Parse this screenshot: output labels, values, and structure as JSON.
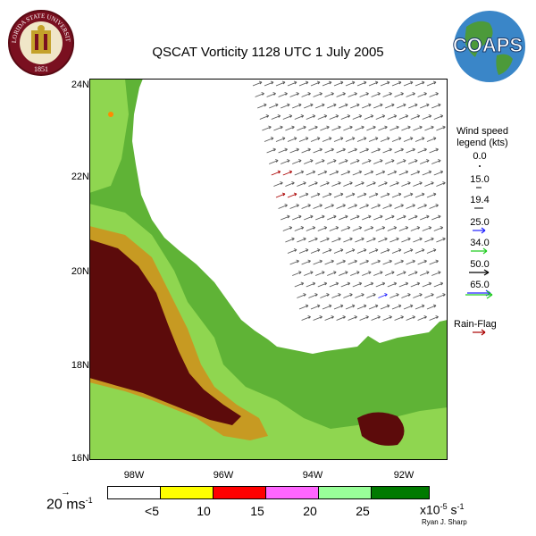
{
  "header": {
    "title": "QSCAT Vorticity 1128 UTC 1 July 2005",
    "left_logo": {
      "icon": "fsu-seal-icon",
      "text_top": "FLORIDA STATE UNIVERSITY",
      "text_year": "1851"
    },
    "right_logo": {
      "icon": "coaps-globe-icon",
      "text": "COAPS"
    }
  },
  "map": {
    "lat_labels": [
      "24N",
      "22N",
      "20N",
      "18N",
      "16N"
    ],
    "lon_labels": [
      "98W",
      "96W",
      "94W",
      "92W"
    ],
    "colors": {
      "ocean": "#ffffff",
      "lowland": "#5fb336",
      "mid": "#8fd650",
      "high": "#c79a22",
      "highest": "#5c0b0b"
    }
  },
  "wind_legend": {
    "title_line1": "Wind speed",
    "title_line2": "legend (kts)",
    "items": [
      {
        "value": "0.0",
        "color": "#000000"
      },
      {
        "value": "15.0",
        "color": "#000000"
      },
      {
        "value": "19.4",
        "color": "#000000"
      },
      {
        "value": "25.0",
        "color": "#2222ff"
      },
      {
        "value": "34.0",
        "color": "#22cc22"
      },
      {
        "value": "50.0",
        "color": "#000000"
      },
      {
        "value": "65.0",
        "color": "#2222ff"
      }
    ],
    "extra_arrow_color": "#22cc22",
    "rain_flag_label": "Rain-Flag",
    "rain_flag_color": "#aa0000"
  },
  "reference_vector": {
    "label": "20 ms",
    "exponent": "-1"
  },
  "color_scale": {
    "segments": [
      {
        "color": "#ffffff"
      },
      {
        "color": "#ffff00"
      },
      {
        "color": "#ff0000"
      },
      {
        "color": "#ff66ff"
      },
      {
        "color": "#99ff99"
      },
      {
        "color": "#007a00"
      }
    ],
    "labels": [
      "<5",
      "10",
      "15",
      "20",
      "25"
    ],
    "units": "x10",
    "units_exp": "-5",
    "units_tail": " s",
    "units_exp2": "-1"
  },
  "credit": "Ryan J. Sharp"
}
